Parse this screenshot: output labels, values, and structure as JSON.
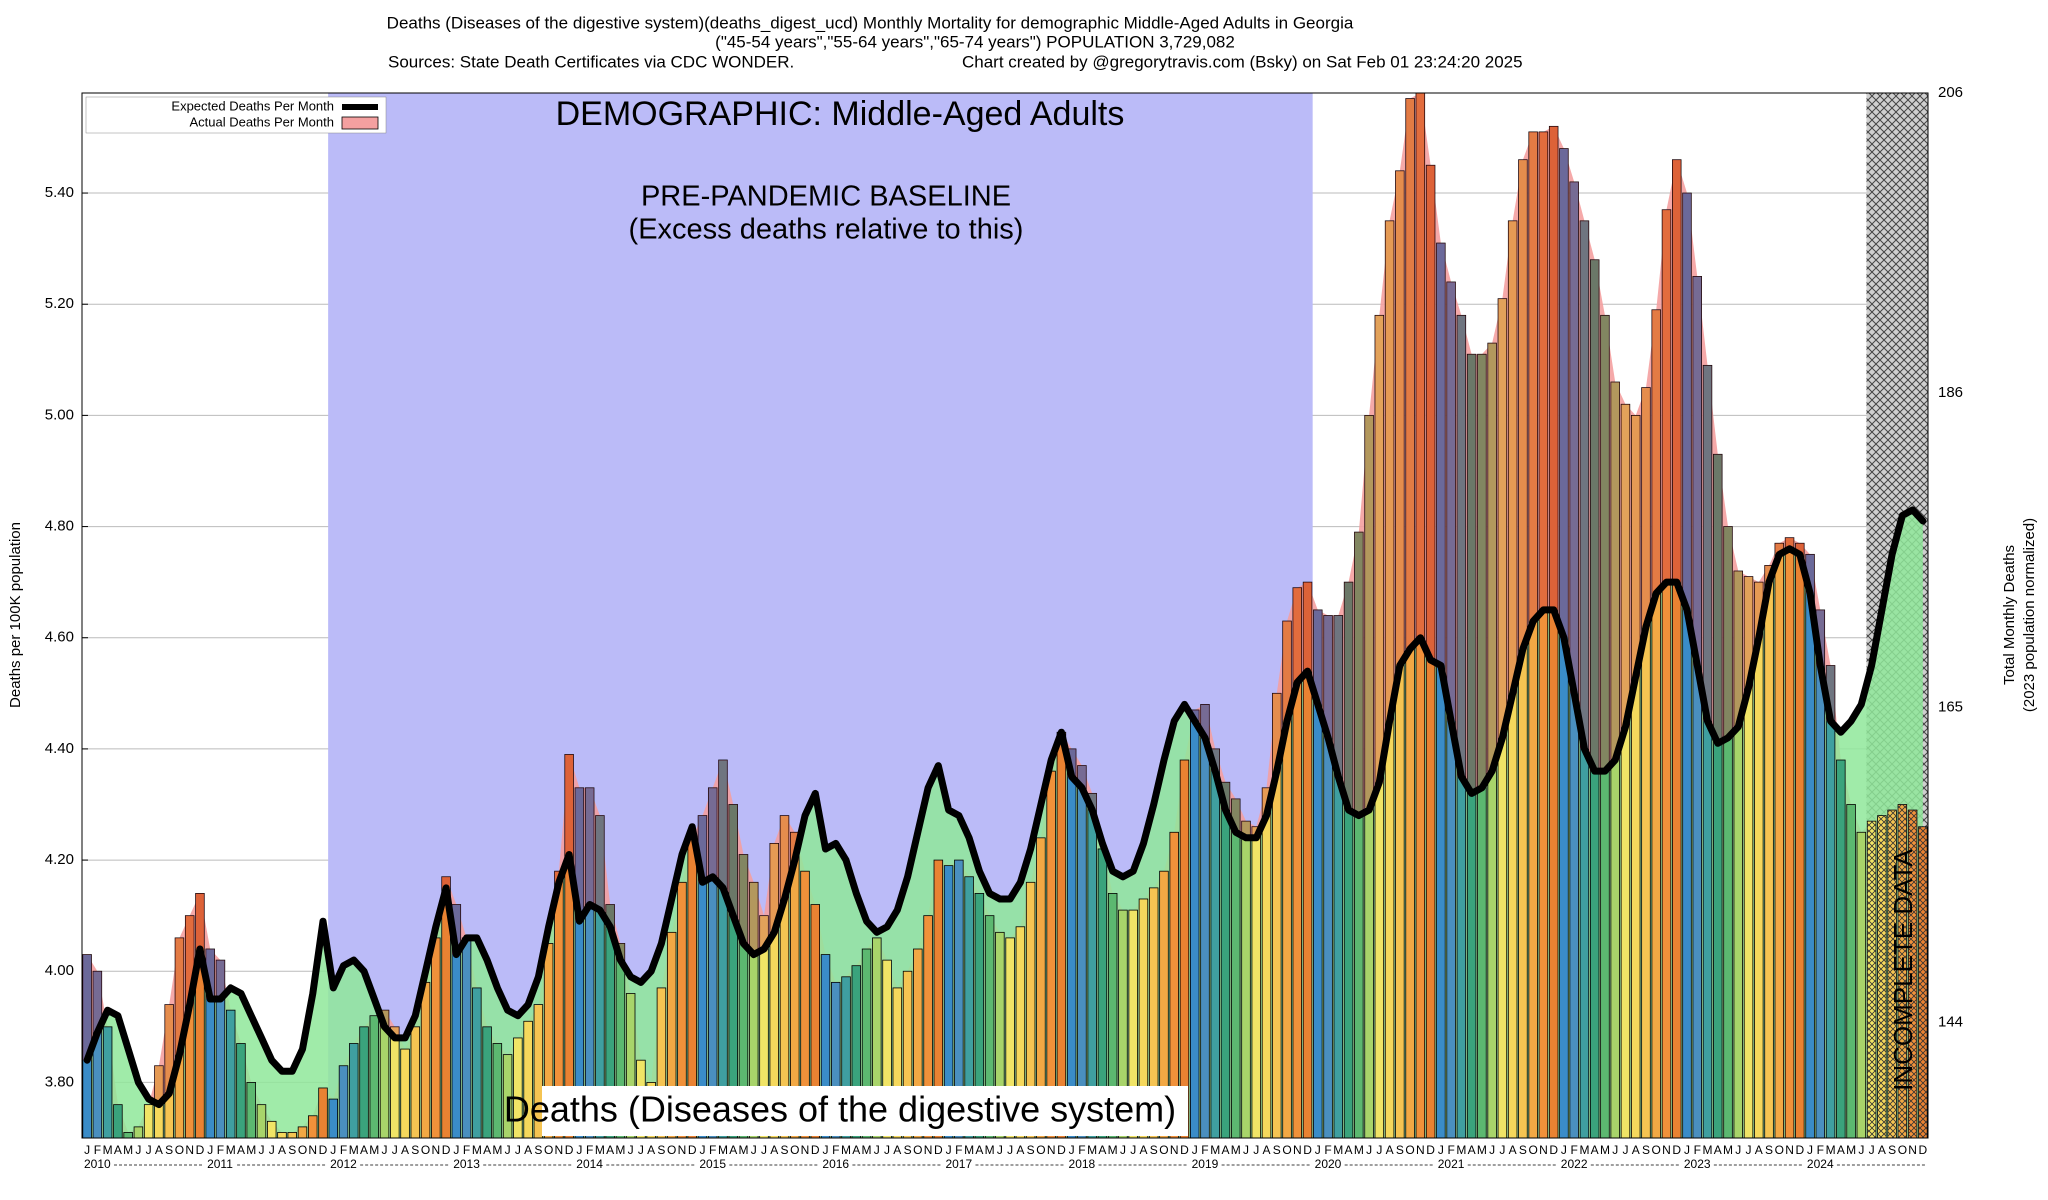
{
  "chart_data": {
    "type": "bar",
    "title": [
      "Deaths (Diseases of the digestive system)(deaths_digest_ucd) Monthly Mortality for demographic Middle-Aged Adults in Georgia",
      "(\"45-54 years\",\"55-64 years\",\"65-74 years\") POPULATION 3,729,082"
    ],
    "sources": "Sources: State Death Certificates via CDC WONDER.",
    "credit": "Chart created by @gregorytravis.com (Bsky) on Sat Feb 01 23:24:20 2025",
    "ylabel": "Deaths per 100K population",
    "y2label": [
      "Total Monthly Deaths",
      "(2023 population normalized)"
    ],
    "annotations": {
      "demographic": "DEMOGRAPHIC: Middle-Aged Adults",
      "baseline": "PRE-PANDEMIC BASELINE",
      "baseline_note": "(Excess deaths relative to this)",
      "cause": "Deaths (Diseases of the digestive system)",
      "incomplete": "INCOMPLETE DATA"
    },
    "categories": [
      "J",
      "F",
      "M",
      "A",
      "M",
      "J",
      "J",
      "A",
      "S",
      "O",
      "N",
      "D",
      "J",
      "F",
      "M",
      "A",
      "M",
      "J",
      "J",
      "A",
      "S",
      "O",
      "N",
      "D",
      "J",
      "F",
      "M",
      "A",
      "M",
      "J",
      "J",
      "A",
      "S",
      "O",
      "N",
      "D",
      "J",
      "F",
      "M",
      "A",
      "M",
      "J",
      "J",
      "A",
      "S",
      "O",
      "N",
      "D",
      "J",
      "F",
      "M",
      "A",
      "M",
      "J",
      "J",
      "A",
      "S",
      "O",
      "N",
      "D",
      "J",
      "F",
      "M",
      "A",
      "M",
      "J",
      "J",
      "A",
      "S",
      "O",
      "N",
      "D",
      "J",
      "F",
      "M",
      "A",
      "M",
      "J",
      "J",
      "A",
      "S",
      "O",
      "N",
      "D",
      "J",
      "F",
      "M",
      "A",
      "M",
      "J",
      "J",
      "A",
      "S",
      "O",
      "N",
      "D",
      "J",
      "F",
      "M",
      "A",
      "M",
      "J",
      "J",
      "A",
      "S",
      "O",
      "N",
      "D",
      "J",
      "F",
      "M",
      "A",
      "M",
      "J",
      "J",
      "A",
      "S",
      "O",
      "N",
      "D",
      "J",
      "F",
      "M",
      "A",
      "M",
      "J",
      "J",
      "A",
      "S",
      "O",
      "N",
      "D",
      "J",
      "F",
      "M",
      "A",
      "M",
      "J",
      "J",
      "A",
      "S",
      "O",
      "N",
      "D",
      "J",
      "F",
      "M",
      "A",
      "M",
      "J",
      "J",
      "A",
      "S",
      "O",
      "N",
      "D",
      "J",
      "F",
      "M",
      "A",
      "M",
      "J",
      "J",
      "A",
      "S",
      "O",
      "N",
      "D",
      "J",
      "F",
      "M",
      "A",
      "M",
      "J",
      "J",
      "A",
      "S",
      "O",
      "N",
      "D"
    ],
    "years": [
      "2010",
      "2011",
      "2012",
      "2013",
      "2014",
      "2015",
      "2016",
      "2017",
      "2018",
      "2019",
      "2020",
      "2021",
      "2022",
      "2023",
      "2024"
    ],
    "month_colors": [
      "#3a8cc8",
      "#4a8fbf",
      "#3f9fa0",
      "#3aa37c",
      "#5cb870",
      "#a8d46a",
      "#f0e466",
      "#f5d85c",
      "#f5c452",
      "#f2a844",
      "#f0913a",
      "#e98232"
    ],
    "series": [
      {
        "name": "Expected Deaths Per Month",
        "color": "#000000",
        "values": [
          3.84,
          3.89,
          3.93,
          3.92,
          3.86,
          3.8,
          3.77,
          3.76,
          3.78,
          3.85,
          3.94,
          4.04,
          3.95,
          3.95,
          3.97,
          3.96,
          3.92,
          3.88,
          3.84,
          3.82,
          3.82,
          3.86,
          3.96,
          4.09,
          3.97,
          4.01,
          4.02,
          4.0,
          3.95,
          3.9,
          3.88,
          3.88,
          3.92,
          4.0,
          4.08,
          4.15,
          4.03,
          4.06,
          4.06,
          4.02,
          3.97,
          3.93,
          3.92,
          3.94,
          3.99,
          4.08,
          4.16,
          4.21,
          4.09,
          4.12,
          4.11,
          4.08,
          4.02,
          3.99,
          3.98,
          4.0,
          4.05,
          4.13,
          4.21,
          4.26,
          4.16,
          4.17,
          4.15,
          4.1,
          4.05,
          4.03,
          4.04,
          4.07,
          4.13,
          4.2,
          4.28,
          4.32,
          4.22,
          4.23,
          4.2,
          4.14,
          4.09,
          4.07,
          4.08,
          4.11,
          4.17,
          4.25,
          4.33,
          4.37,
          4.29,
          4.28,
          4.24,
          4.18,
          4.14,
          4.13,
          4.13,
          4.16,
          4.22,
          4.3,
          4.38,
          4.43,
          4.35,
          4.33,
          4.29,
          4.23,
          4.18,
          4.17,
          4.18,
          4.23,
          4.3,
          4.38,
          4.45,
          4.48,
          4.45,
          4.42,
          4.36,
          4.29,
          4.25,
          4.24,
          4.24,
          4.28,
          4.36,
          4.45,
          4.52,
          4.54,
          4.48,
          4.42,
          4.35,
          4.29,
          4.28,
          4.29,
          4.34,
          4.45,
          4.55,
          4.58,
          4.6,
          4.56,
          4.55,
          4.45,
          4.35,
          4.32,
          4.33,
          4.36,
          4.42,
          4.5,
          4.58,
          4.63,
          4.65,
          4.65,
          4.6,
          4.5,
          4.4,
          4.36,
          4.36,
          4.38,
          4.44,
          4.53,
          4.62,
          4.68,
          4.7,
          4.7,
          4.65,
          4.55,
          4.45,
          4.41,
          4.42,
          4.44,
          4.51,
          4.6,
          4.7,
          4.75,
          4.76,
          4.75,
          4.68,
          4.55,
          4.45,
          4.43,
          4.45,
          4.48,
          4.55,
          4.65,
          4.75,
          4.82,
          4.83,
          4.81
        ]
      },
      {
        "name": "Actual Deaths Per Month",
        "color": "#f4a0a0",
        "values": [
          4.03,
          4.0,
          3.9,
          3.76,
          3.71,
          3.72,
          3.76,
          3.83,
          3.94,
          4.06,
          4.1,
          4.14,
          4.04,
          4.02,
          3.93,
          3.87,
          3.8,
          3.76,
          3.73,
          3.71,
          3.71,
          3.72,
          3.74,
          3.79,
          3.77,
          3.83,
          3.87,
          3.9,
          3.92,
          3.93,
          3.9,
          3.86,
          3.9,
          3.98,
          4.06,
          4.17,
          4.12,
          4.06,
          3.97,
          3.9,
          3.87,
          3.85,
          3.88,
          3.91,
          3.94,
          4.05,
          4.18,
          4.39,
          4.33,
          4.33,
          4.28,
          4.12,
          4.05,
          3.96,
          3.84,
          3.8,
          3.97,
          4.07,
          4.16,
          4.24,
          4.28,
          4.33,
          4.38,
          4.3,
          4.21,
          4.16,
          4.1,
          4.23,
          4.28,
          4.25,
          4.18,
          4.12,
          4.03,
          3.98,
          3.99,
          4.01,
          4.04,
          4.06,
          4.02,
          3.97,
          4.0,
          4.04,
          4.1,
          4.2,
          4.19,
          4.2,
          4.17,
          4.14,
          4.1,
          4.07,
          4.06,
          4.08,
          4.16,
          4.24,
          4.36,
          4.43,
          4.4,
          4.37,
          4.32,
          4.22,
          4.14,
          4.11,
          4.11,
          4.13,
          4.15,
          4.18,
          4.25,
          4.38,
          4.47,
          4.48,
          4.4,
          4.34,
          4.31,
          4.27,
          4.26,
          4.33,
          4.5,
          4.63,
          4.69,
          4.7,
          4.65,
          4.64,
          4.64,
          4.7,
          4.79,
          5.0,
          5.18,
          5.35,
          5.44,
          5.57,
          5.58,
          5.45,
          5.31,
          5.24,
          5.18,
          5.11,
          5.11,
          5.13,
          5.21,
          5.35,
          5.46,
          5.51,
          5.51,
          5.52,
          5.48,
          5.42,
          5.35,
          5.28,
          5.18,
          5.06,
          5.02,
          5.0,
          5.05,
          5.19,
          5.37,
          5.46,
          5.4,
          5.25,
          5.09,
          4.93,
          4.8,
          4.72,
          4.71,
          4.7,
          4.73,
          4.77,
          4.78,
          4.77,
          4.75,
          4.65,
          4.55,
          4.38,
          4.3,
          4.25,
          4.27,
          4.28,
          4.29,
          4.3,
          4.29,
          4.26
        ]
      }
    ],
    "ylim": [
      3.7,
      5.58
    ],
    "yticks": [
      {
        "value": 3.8,
        "label": "3.80"
      },
      {
        "value": 4.0,
        "label": "4.00"
      },
      {
        "value": 4.2,
        "label": "4.20"
      },
      {
        "value": 4.4,
        "label": "4.40"
      },
      {
        "value": 4.6,
        "label": "4.60"
      },
      {
        "value": 4.8,
        "label": "4.80"
      },
      {
        "value": 5.0,
        "label": "5.00"
      },
      {
        "value": 5.2,
        "label": "5.20"
      },
      {
        "value": 5.4,
        "label": "5.40"
      }
    ],
    "y2lim": [
      136.3,
      206
    ],
    "y2ticks": [
      144,
      165,
      186,
      206
    ],
    "grid": true,
    "legend": "upper left"
  }
}
